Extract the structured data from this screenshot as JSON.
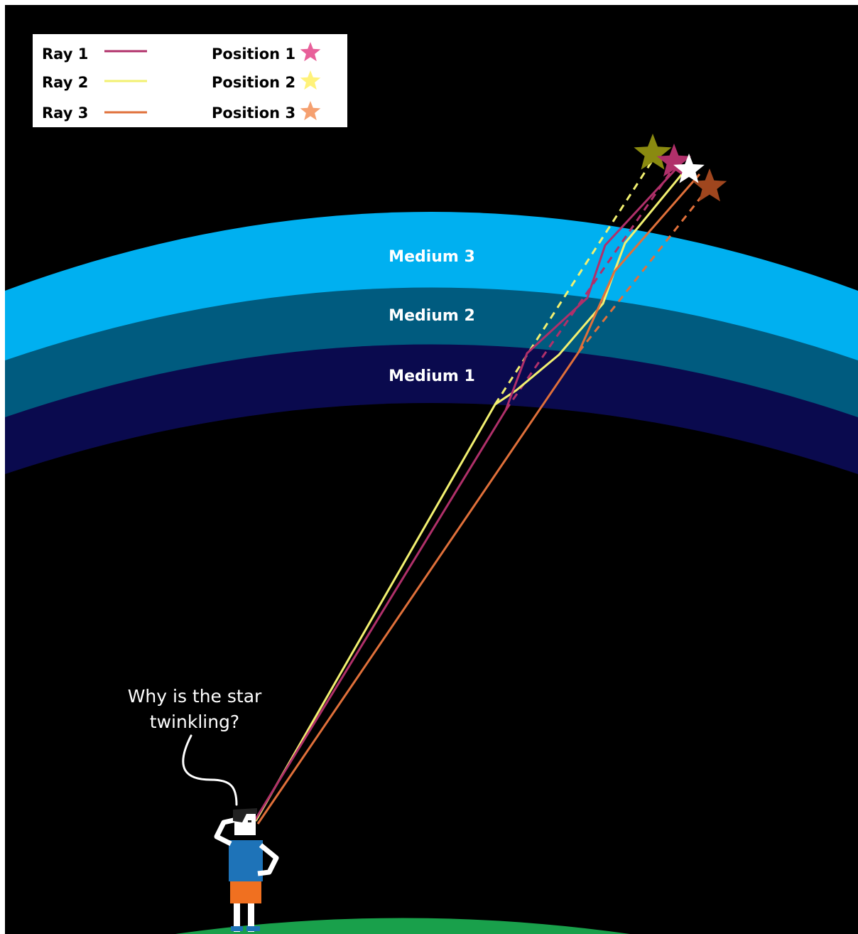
{
  "legend": {
    "rays": [
      {
        "label": "Ray 1",
        "color": "#b0306a"
      },
      {
        "label": "Ray 2",
        "color": "#f2f070"
      },
      {
        "label": "Ray 3",
        "color": "#e0703a"
      }
    ],
    "positions": [
      {
        "label": "Position 1",
        "color": "#e8609a"
      },
      {
        "label": "Position 2",
        "color": "#fff27a"
      },
      {
        "label": "Position 3",
        "color": "#f5a070"
      }
    ]
  },
  "media": [
    {
      "label": "Medium 3",
      "color": "#00b0f0"
    },
    {
      "label": "Medium 2",
      "color": "#005b7f"
    },
    {
      "label": "Medium 1",
      "color": "#0a0a4e"
    }
  ],
  "stars": [
    {
      "name": "apparent-position-2",
      "color": "#8a8a10"
    },
    {
      "name": "apparent-position-1",
      "color": "#b0306a"
    },
    {
      "name": "true-star",
      "color": "#ffffff"
    },
    {
      "name": "apparent-position-3",
      "color": "#a0461e"
    }
  ],
  "speech": {
    "line1": "Why is the star",
    "line2": "twinkling?"
  },
  "ground_color": "#19a04b"
}
